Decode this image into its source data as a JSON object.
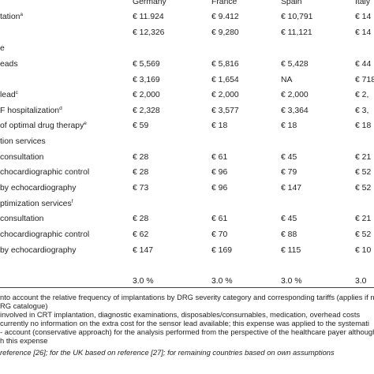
{
  "header": {
    "countries": [
      "Germany",
      "France",
      "Spain",
      "Italy"
    ]
  },
  "rows": [
    {
      "label": "tation",
      "sup": "a",
      "v": [
        "€ 11.924",
        "€ 9.412",
        "€ 10,791",
        "€ 14"
      ]
    },
    {
      "label": "",
      "sup": "",
      "v": [
        "€ 12,326",
        "€ 9,280",
        "€ 11,121",
        "€ 14"
      ]
    },
    {
      "label": "e",
      "sup": "",
      "v": [
        "",
        "",
        "",
        ""
      ]
    },
    {
      "label": "eads",
      "sup": "",
      "v": [
        "€ 5,569",
        "€ 5,816",
        "€ 5,428",
        "€ 44"
      ]
    },
    {
      "label": "",
      "sup": "",
      "v": [
        "€ 3,169",
        "€ 1,654",
        "NA",
        "€ 718"
      ]
    },
    {
      "label": "lead",
      "sup": "c",
      "v": [
        "€ 2,000",
        "€ 2,000",
        "€ 2,000",
        "€ 2,"
      ]
    },
    {
      "label": "F hospitalization",
      "sup": "d",
      "v": [
        "€ 2,328",
        "€ 3,577",
        "€ 3,364",
        "€ 3,"
      ]
    },
    {
      "label": "of optimal drug therapy",
      "sup": "e",
      "v": [
        "€ 59",
        "€ 18",
        "€ 18",
        "€ 18"
      ]
    },
    {
      "label": "tion services",
      "sup": "",
      "v": [
        "",
        "",
        "",
        ""
      ]
    },
    {
      "label": "consultation",
      "sup": "",
      "v": [
        "€ 28",
        "€ 61",
        "€ 45",
        "€ 21"
      ]
    },
    {
      "label": "chocardiographic control",
      "sup": "",
      "v": [
        "€ 28",
        "€ 96",
        "€ 79",
        "€ 52"
      ]
    },
    {
      "label": "by echocardiography",
      "sup": "",
      "v": [
        "€ 73",
        "€ 96",
        "€ 147",
        "€ 52"
      ]
    },
    {
      "label": "ptimization services",
      "sup": "f",
      "v": [
        "",
        "",
        "",
        ""
      ]
    },
    {
      "label": "consultation",
      "sup": "",
      "v": [
        "€ 28",
        "€ 61",
        "€ 45",
        "€ 21"
      ]
    },
    {
      "label": "chocardiographic control",
      "sup": "",
      "v": [
        "€ 62",
        "€ 70",
        "€ 88",
        "€ 52"
      ]
    },
    {
      "label": "by echocardiography",
      "sup": "",
      "v": [
        "€ 147",
        "€ 169",
        "€ 115",
        "€ 10"
      ]
    },
    {
      "label": "",
      "sup": "",
      "v": [
        "",
        "",
        "",
        ""
      ]
    },
    {
      "label": "",
      "sup": "",
      "v": [
        "3.0 %",
        "3.0 %",
        "3.0 %",
        "3.0"
      ]
    }
  ],
  "footnotes": [
    "nto account the relative frequency of implantations by DRG severity category and corresponding tariffs (applies if n",
    "RG catalogue)",
    "involved in CRT implantation, diagnostic examinations, disposables/consumables, medication, overhead costs",
    "currently no information on the extra cost for the sensor lead available; this expense was applied to the systemati",
    "- account (conservative approach) for the analysis performed from the perspective of the healthcare payer although",
    "h this expense",
    "reference [26]; for the UK based on reference [27]; for remaining countries based on own assumptions"
  ]
}
